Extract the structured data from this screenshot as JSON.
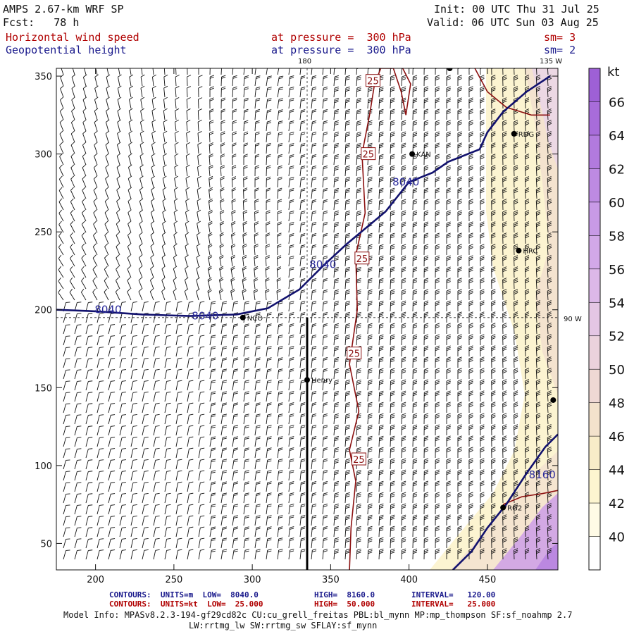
{
  "header": {
    "model": "AMPS 2.67-km WRF SP",
    "fcst": "Fcst:   78 h",
    "init": "Init: 00 UTC Thu 31 Jul 25",
    "valid": "Valid: 06 UTC Sun 03 Aug 25",
    "field1": "Horizontal wind speed",
    "field1_level": "at pressure =  300 hPa",
    "field1_sm": "sm= 3",
    "field2": "Geopotential height",
    "field2_level": "at pressure =  300 hPa",
    "field2_sm": "sm= 2"
  },
  "map": {
    "x_range": [
      175,
      495
    ],
    "y_range": [
      33,
      355
    ],
    "x_ticks": [
      200,
      250,
      300,
      350,
      400,
      450
    ],
    "y_ticks": [
      50,
      100,
      150,
      200,
      250,
      300,
      350
    ],
    "meridian_labels": {
      "lon_180": "180",
      "lon_135w": "135 W",
      "lon_90w": "90 W"
    },
    "meridian_x": 335,
    "parallel_y": 195,
    "cross_section_line": {
      "x": 335,
      "y_from": 33,
      "y_to": 195
    },
    "stations": [
      {
        "name": "NCO",
        "x": 294,
        "y": 195
      },
      {
        "name": "Henry",
        "x": 335,
        "y": 155
      },
      {
        "name": "KAN",
        "x": 402,
        "y": 300
      },
      {
        "name": "RDG",
        "x": 467,
        "y": 313
      },
      {
        "name": "HRC",
        "x": 470,
        "y": 238
      },
      {
        "name": "RG2",
        "x": 460,
        "y": 73
      },
      {
        "name": "",
        "x": 426,
        "y": 355
      },
      {
        "name": "",
        "x": 492,
        "y": 142
      }
    ],
    "geopotential_contours": [
      {
        "label": "8040",
        "points": [
          [
            175,
            200
          ],
          [
            200,
            199
          ],
          [
            230,
            197
          ],
          [
            260,
            196
          ],
          [
            290,
            197
          ],
          [
            310,
            201
          ],
          [
            330,
            213
          ],
          [
            345,
            228
          ],
          [
            360,
            242
          ],
          [
            385,
            263
          ],
          [
            400,
            282
          ],
          [
            415,
            288
          ],
          [
            425,
            295
          ],
          [
            445,
            303
          ],
          [
            450,
            314
          ],
          [
            460,
            327
          ],
          [
            475,
            340
          ],
          [
            490,
            350
          ]
        ]
      },
      {
        "label": "8160",
        "points": [
          [
            428,
            33
          ],
          [
            440,
            45
          ],
          [
            450,
            60
          ],
          [
            462,
            75
          ],
          [
            475,
            95
          ],
          [
            487,
            112
          ],
          [
            495,
            120
          ]
        ]
      }
    ],
    "geopotential_label_positions": [
      [
        208,
        200
      ],
      [
        270,
        196
      ],
      [
        345,
        229
      ],
      [
        398,
        282
      ],
      [
        485,
        94
      ]
    ],
    "wind_contours": [
      {
        "label": "25",
        "points": [
          [
            362,
            33
          ],
          [
            363,
            60
          ],
          [
            366,
            90
          ],
          [
            362,
            110
          ],
          [
            368,
            135
          ],
          [
            362,
            165
          ],
          [
            367,
            200
          ],
          [
            366,
            235
          ],
          [
            372,
            262
          ],
          [
            370,
            300
          ],
          [
            375,
            326
          ],
          [
            378,
            345
          ],
          [
            382,
            355
          ],
          [
            390,
            355
          ],
          [
            395,
            340
          ],
          [
            398,
            325
          ],
          [
            401,
            345
          ],
          [
            396,
            355
          ]
        ]
      },
      {
        "label": "",
        "points": [
          [
            442,
            355
          ],
          [
            450,
            340
          ],
          [
            462,
            330
          ],
          [
            478,
            325
          ],
          [
            490,
            325
          ]
        ]
      },
      {
        "label": "",
        "points": [
          [
            460,
            75
          ],
          [
            472,
            80
          ],
          [
            485,
            82
          ],
          [
            495,
            84
          ]
        ]
      }
    ],
    "wind_label_positions": [
      [
        377,
        347
      ],
      [
        374,
        300
      ],
      [
        370,
        233
      ],
      [
        365,
        172
      ],
      [
        368,
        104
      ]
    ]
  },
  "colorbar": {
    "unit": "kt",
    "labels": [
      "40",
      "42",
      "44",
      "46",
      "48",
      "50",
      "52",
      "54",
      "56",
      "58",
      "60",
      "62",
      "64",
      "66"
    ],
    "colors": [
      "#ffffff",
      "#fffbe6",
      "#fdf5d0",
      "#f8ecc8",
      "#f3e2cc",
      "#efd8d4",
      "#ebd2dc",
      "#e4c6e4",
      "#dcb8e8",
      "#d2a8e8",
      "#c89ae6",
      "#bd8ae2",
      "#b27ade",
      "#a86cda",
      "#9e60d6"
    ]
  },
  "footer": {
    "row1": [
      {
        "text": "CONTOURS:  UNITS=m  LOW=  8040.0",
        "color": "#1a1a8c"
      },
      {
        "text": "HIGH=  8160.0",
        "color": "#1a1a8c"
      },
      {
        "text": "INTERVAL=   120.00",
        "color": "#1a1a8c"
      }
    ],
    "row2": [
      {
        "text": "CONTOURS:  UNITS=kt  LOW=  25.000",
        "color": "#b00000"
      },
      {
        "text": "HIGH=  50.000",
        "color": "#b00000"
      },
      {
        "text": "INTERVAL=   25.000",
        "color": "#b00000"
      }
    ],
    "info1": "Model Info: MPASv8.2.3-194-gf29cd82c CU:cu_grell_freitas PBL:bl_mynn MP:mp_thompson SF:sf_noahmp 2.7",
    "info2": "LW:rrtmg_lw SW:rrtmg_sw SFLAY:sf_mynn"
  }
}
